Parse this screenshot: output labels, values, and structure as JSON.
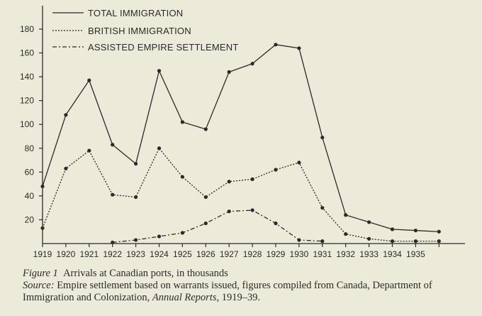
{
  "chart_data": {
    "type": "line",
    "title": "",
    "xlabel": "",
    "ylabel": "",
    "x_tick_labels": [
      "1919",
      "1920",
      "1921",
      "1922",
      "1923",
      "1924",
      "1925",
      "1926",
      "1927",
      "1928",
      "1929",
      "1930",
      "1931",
      "1932",
      "1933",
      "1934",
      "1935"
    ],
    "y_ticks": [
      20,
      40,
      60,
      80,
      100,
      120,
      140,
      160,
      180
    ],
    "ylim": [
      0,
      190
    ],
    "grid": false,
    "legend_position": "top",
    "series": [
      {
        "name": "TOTAL IMMIGRATION",
        "style": "solid",
        "x": [
          1919,
          1920,
          1921,
          1922,
          1923,
          1924,
          1925,
          1926,
          1927,
          1928,
          1929,
          1930,
          1931,
          1932,
          1933,
          1934,
          1935,
          1936
        ],
        "values": [
          48,
          108,
          137,
          83,
          67,
          145,
          102,
          96,
          144,
          151,
          167,
          164,
          89,
          24,
          18,
          12,
          11,
          10
        ]
      },
      {
        "name": "BRITISH IMMIGRATION",
        "style": "dotted",
        "x": [
          1919,
          1920,
          1921,
          1922,
          1923,
          1924,
          1925,
          1926,
          1927,
          1928,
          1929,
          1930,
          1931,
          1932,
          1933,
          1934,
          1935,
          1936
        ],
        "values": [
          13,
          63,
          78,
          41,
          39,
          80,
          56,
          39,
          52,
          54,
          62,
          68,
          30,
          8,
          4,
          2,
          2,
          2
        ]
      },
      {
        "name": "ASSISTED EMPIRE SETTLEMENT",
        "style": "dash-dot",
        "x": [
          1922,
          1923,
          1924,
          1925,
          1926,
          1927,
          1928,
          1929,
          1930,
          1931
        ],
        "values": [
          1,
          3,
          6,
          9,
          17,
          27,
          28,
          17,
          3,
          2
        ]
      }
    ]
  },
  "caption": {
    "figure_label": "Figure 1",
    "figure_text": "Arrivals at Canadian ports, in thousands",
    "source_label": "Source:",
    "source_text": "Empire settlement based on warrants issued, figures compiled from Canada, Department of Immigration and Colonization,",
    "source_italic": "Annual Reports",
    "source_end": ", 1919–39."
  }
}
